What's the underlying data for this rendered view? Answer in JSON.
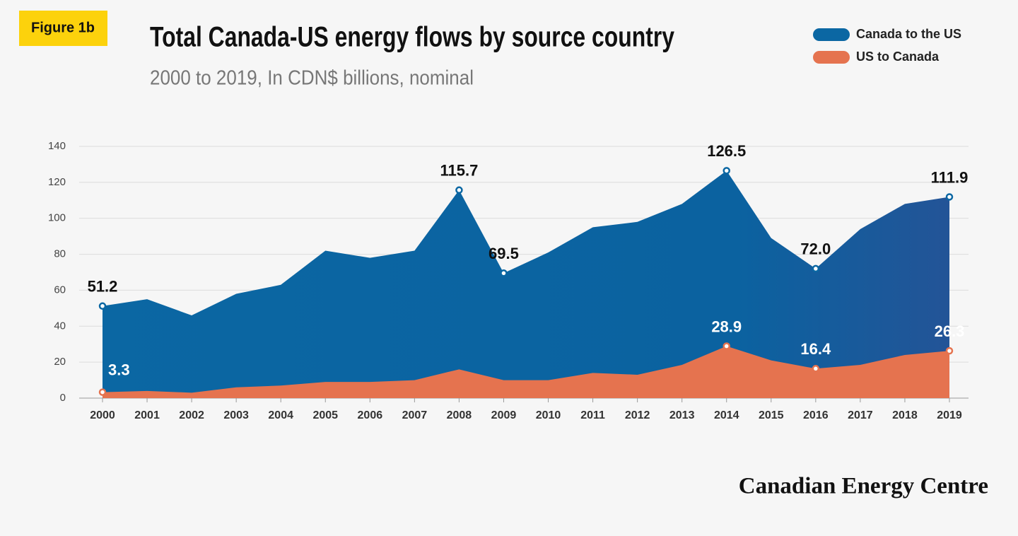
{
  "chart_data": {
    "type": "area",
    "figure_label": "Figure 1b",
    "title": "Total Canada-US energy flows by source country",
    "subtitle": "2000 to 2019, In CDN$ billions, nominal",
    "brand": "Canadian Energy Centre",
    "categories": [
      "2000",
      "2001",
      "2002",
      "2003",
      "2004",
      "2005",
      "2006",
      "2007",
      "2008",
      "2009",
      "2010",
      "2011",
      "2012",
      "2013",
      "2014",
      "2015",
      "2016",
      "2017",
      "2018",
      "2019"
    ],
    "series": [
      {
        "name": "Canada to the US",
        "color": "#0b67a3",
        "values": [
          51.2,
          55,
          46,
          58,
          63,
          82,
          78,
          82,
          115.7,
          69.5,
          81,
          95,
          98,
          108,
          126.5,
          89,
          72.0,
          94,
          108,
          111.9
        ],
        "value_labels": [
          "51.2",
          null,
          null,
          null,
          null,
          null,
          null,
          null,
          "115.7",
          "69.5",
          null,
          null,
          null,
          null,
          "126.5",
          null,
          "72.0",
          null,
          null,
          "111.9"
        ]
      },
      {
        "name": "US to Canada",
        "color": "#e5734f",
        "values": [
          3.3,
          4,
          3,
          6,
          7,
          9,
          9,
          10,
          16,
          10,
          10,
          14,
          13,
          18.5,
          28.9,
          21,
          16.4,
          18.5,
          24,
          26.3
        ],
        "value_labels": [
          "3.3",
          null,
          null,
          null,
          null,
          null,
          null,
          null,
          null,
          null,
          null,
          null,
          null,
          null,
          "28.9",
          null,
          "16.4",
          null,
          null,
          "26.3"
        ]
      }
    ],
    "ylim": [
      0,
      140
    ],
    "yticks": [
      0,
      20,
      40,
      60,
      80,
      100,
      120,
      140
    ],
    "grid": true,
    "legend": "top-right"
  }
}
